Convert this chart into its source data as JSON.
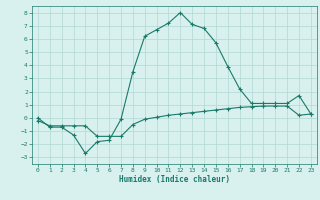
{
  "line1_x": [
    0,
    1,
    2,
    3,
    4,
    5,
    6,
    7,
    8,
    9,
    10,
    11,
    12,
    13,
    14,
    15,
    16,
    17,
    18,
    19,
    20,
    21,
    22,
    23
  ],
  "line1_y": [
    0.0,
    -0.7,
    -0.7,
    -1.3,
    -2.7,
    -1.8,
    -1.7,
    -0.1,
    3.5,
    6.2,
    6.7,
    7.2,
    8.0,
    7.1,
    6.8,
    5.7,
    3.9,
    2.2,
    1.1,
    1.1,
    1.1,
    1.1,
    1.7,
    0.3
  ],
  "line2_x": [
    0,
    1,
    2,
    3,
    4,
    5,
    6,
    7,
    8,
    9,
    10,
    11,
    12,
    13,
    14,
    15,
    16,
    17,
    18,
    19,
    20,
    21,
    22,
    23
  ],
  "line2_y": [
    -0.2,
    -0.6,
    -0.6,
    -0.6,
    -0.6,
    -1.4,
    -1.4,
    -1.4,
    -0.5,
    -0.1,
    0.05,
    0.2,
    0.3,
    0.4,
    0.5,
    0.6,
    0.7,
    0.8,
    0.85,
    0.9,
    0.9,
    0.9,
    0.2,
    0.3
  ],
  "line_color": "#1a7a6a",
  "bg_color": "#d8f0ee",
  "grid_color": "#b0d8d4",
  "xlabel": "Humidex (Indice chaleur)",
  "xlim": [
    -0.5,
    23.5
  ],
  "ylim": [
    -3.5,
    8.5
  ],
  "yticks": [
    -3,
    -2,
    -1,
    0,
    1,
    2,
    3,
    4,
    5,
    6,
    7,
    8
  ],
  "xticks": [
    0,
    1,
    2,
    3,
    4,
    5,
    6,
    7,
    8,
    9,
    10,
    11,
    12,
    13,
    14,
    15,
    16,
    17,
    18,
    19,
    20,
    21,
    22,
    23
  ]
}
